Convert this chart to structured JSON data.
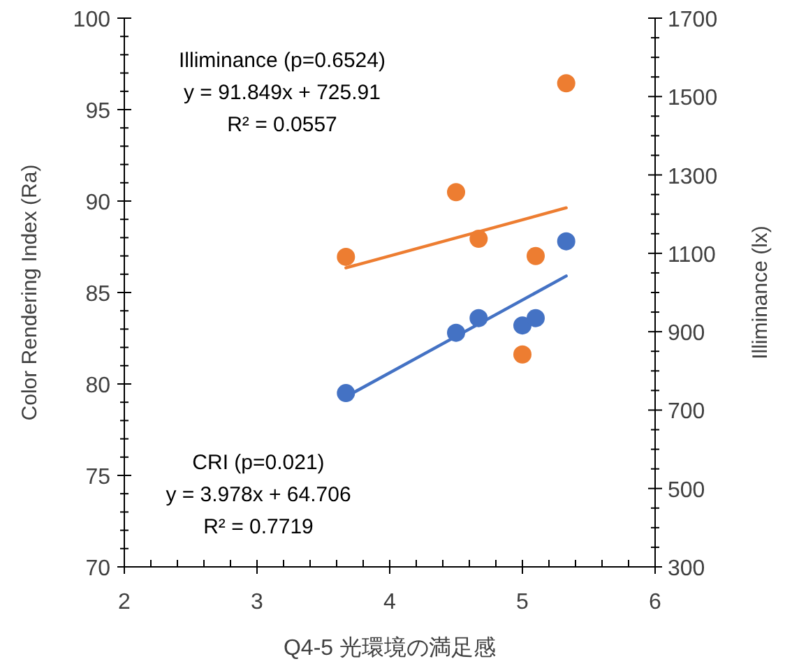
{
  "chart_data": {
    "type": "scatter",
    "xlabel": "Q4-5 光環境の満足感",
    "ylabel": "Color Rendering Index (Ra)",
    "y2label": "Illiminance (lx)",
    "xlim": [
      2,
      6
    ],
    "ylim": [
      70,
      100
    ],
    "y2lim": [
      300,
      1700
    ],
    "xticks": [
      2,
      {
        "value": 2.2,
        "label": null
      },
      {
        "value": 2.4,
        "label": null
      },
      {
        "value": 2.6,
        "label": null
      },
      {
        "value": 2.8,
        "label": null
      },
      3,
      {
        "value": 3.2,
        "label": null
      },
      {
        "value": 3.4,
        "label": null
      },
      {
        "value": 3.6,
        "label": null
      },
      {
        "value": 3.8,
        "label": null
      },
      4,
      {
        "value": 4.2,
        "label": null
      },
      {
        "value": 4.4,
        "label": null
      },
      {
        "value": 4.6,
        "label": null
      },
      {
        "value": 4.8,
        "label": null
      },
      5,
      {
        "value": 5.2,
        "label": null
      },
      {
        "value": 5.4,
        "label": null
      },
      {
        "value": 5.6,
        "label": null
      },
      {
        "value": 5.8,
        "label": null
      },
      6
    ],
    "yticks": [
      70,
      {
        "value": 71,
        "label": null
      },
      {
        "value": 72,
        "label": null
      },
      {
        "value": 73,
        "label": null
      },
      {
        "value": 74,
        "label": null
      },
      75,
      {
        "value": 76,
        "label": null
      },
      {
        "value": 77,
        "label": null
      },
      {
        "value": 78,
        "label": null
      },
      {
        "value": 79,
        "label": null
      },
      80,
      {
        "value": 81,
        "label": null
      },
      {
        "value": 82,
        "label": null
      },
      {
        "value": 83,
        "label": null
      },
      {
        "value": 84,
        "label": null
      },
      85,
      {
        "value": 86,
        "label": null
      },
      {
        "value": 87,
        "label": null
      },
      {
        "value": 88,
        "label": null
      },
      {
        "value": 89,
        "label": null
      },
      90,
      {
        "value": 91,
        "label": null
      },
      {
        "value": 92,
        "label": null
      },
      {
        "value": 93,
        "label": null
      },
      {
        "value": 94,
        "label": null
      },
      95,
      {
        "value": 96,
        "label": null
      },
      {
        "value": 97,
        "label": null
      },
      {
        "value": 98,
        "label": null
      },
      {
        "value": 99,
        "label": null
      },
      100
    ],
    "y2ticks": [
      300,
      {
        "value": 350,
        "label": null
      },
      {
        "value": 400,
        "label": null
      },
      {
        "value": 450,
        "label": null
      },
      500,
      {
        "value": 550,
        "label": null
      },
      {
        "value": 600,
        "label": null
      },
      {
        "value": 650,
        "label": null
      },
      700,
      {
        "value": 750,
        "label": null
      },
      {
        "value": 800,
        "label": null
      },
      {
        "value": 850,
        "label": null
      },
      900,
      {
        "value": 950,
        "label": null
      },
      {
        "value": 1000,
        "label": null
      },
      {
        "value": 1050,
        "label": null
      },
      1100,
      {
        "value": 1150,
        "label": null
      },
      {
        "value": 1200,
        "label": null
      },
      {
        "value": 1250,
        "label": null
      },
      1300,
      {
        "value": 1350,
        "label": null
      },
      {
        "value": 1400,
        "label": null
      },
      {
        "value": 1450,
        "label": null
      },
      1500,
      {
        "value": 1550,
        "label": null
      },
      {
        "value": 1600,
        "label": null
      },
      {
        "value": 1650,
        "label": null
      },
      1700
    ],
    "marker": "circle",
    "grid": false,
    "series": [
      {
        "color": "#4472c4",
        "x": [
          3.67,
          4.5,
          4.67,
          5.0,
          5.1,
          5.33
        ],
        "values": [
          79.5,
          82.8,
          83.6,
          83.2,
          83.6,
          87.8
        ]
      },
      {
        "axis": "y2",
        "color": "#ed7d31",
        "x": [
          3.67,
          4.5,
          4.67,
          5.0,
          5.1,
          5.33
        ],
        "values": [
          1091,
          1256,
          1137,
          842,
          1093,
          1534
        ]
      },
      {
        "type": "line",
        "color": "#4472c4",
        "x": [
          3.67,
          5.33
        ],
        "values": [
          79.3,
          85.9
        ],
        "marker": "none"
      },
      {
        "type": "line",
        "axis": "y2",
        "color": "#ed7d31",
        "x": [
          3.67,
          5.33
        ],
        "values": [
          1063,
          1216
        ],
        "marker": "none"
      }
    ],
    "annotations": [
      "Illiminance (p=0.6524)\ny = 91.849x + 725.91\nR² = 0.0557",
      "CRI (p=0.021)\ny = 3.978x + 64.706\nR² = 0.7719"
    ]
  }
}
